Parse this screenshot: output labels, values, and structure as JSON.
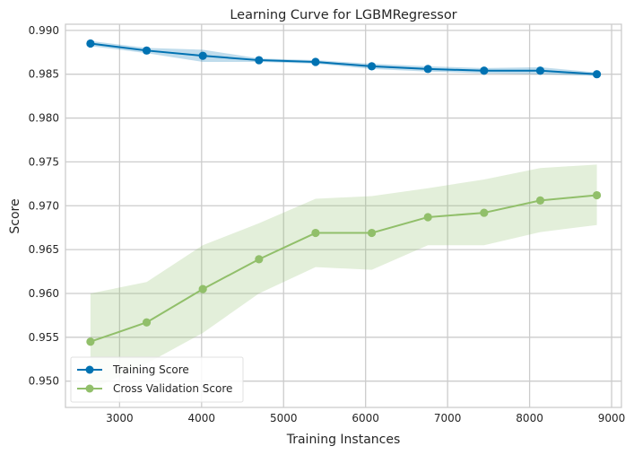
{
  "chart_data": {
    "type": "line",
    "title": "Learning Curve for LGBMRegressor",
    "xlabel": "Training Instances",
    "ylabel": "Score",
    "xlim": [
      2340,
      9120
    ],
    "ylim": [
      0.947,
      0.9907
    ],
    "xticks": [
      3000,
      4000,
      5000,
      6000,
      7000,
      8000,
      9000
    ],
    "xtick_labels": [
      "3000",
      "4000",
      "5000",
      "6000",
      "7000",
      "8000",
      "9000"
    ],
    "yticks": [
      0.95,
      0.955,
      0.96,
      0.965,
      0.97,
      0.975,
      0.98,
      0.985,
      0.99
    ],
    "ytick_labels": [
      "0.950",
      "0.955",
      "0.960",
      "0.965",
      "0.970",
      "0.975",
      "0.980",
      "0.985",
      "0.990"
    ],
    "grid": true,
    "legend_position": "lower-left",
    "x": [
      2645,
      3330,
      4015,
      4700,
      5390,
      6075,
      6760,
      7445,
      8130,
      8820
    ],
    "series": [
      {
        "name": "Training Score",
        "color": "#0072b2",
        "band_color": "#0072b2",
        "values": [
          0.9885,
          0.9877,
          0.9871,
          0.9866,
          0.9864,
          0.9859,
          0.9856,
          0.9854,
          0.9854,
          0.985
        ],
        "lower": [
          0.9882,
          0.9874,
          0.9864,
          0.9864,
          0.9862,
          0.9856,
          0.9853,
          0.9851,
          0.985,
          0.9848
        ],
        "upper": [
          0.9888,
          0.988,
          0.9878,
          0.9868,
          0.9866,
          0.9862,
          0.9859,
          0.9857,
          0.9858,
          0.9852
        ]
      },
      {
        "name": "Cross Validation Score",
        "color": "#91bf6a",
        "band_color": "#91bf6a",
        "values": [
          0.9545,
          0.9567,
          0.9605,
          0.9639,
          0.9669,
          0.9669,
          0.9687,
          0.9692,
          0.9706,
          0.9712
        ],
        "lower": [
          0.949,
          0.952,
          0.9555,
          0.96,
          0.963,
          0.9627,
          0.9655,
          0.9655,
          0.967,
          0.9678
        ],
        "upper": [
          0.96,
          0.9613,
          0.9655,
          0.968,
          0.9708,
          0.9711,
          0.972,
          0.973,
          0.9743,
          0.9747
        ]
      }
    ]
  }
}
